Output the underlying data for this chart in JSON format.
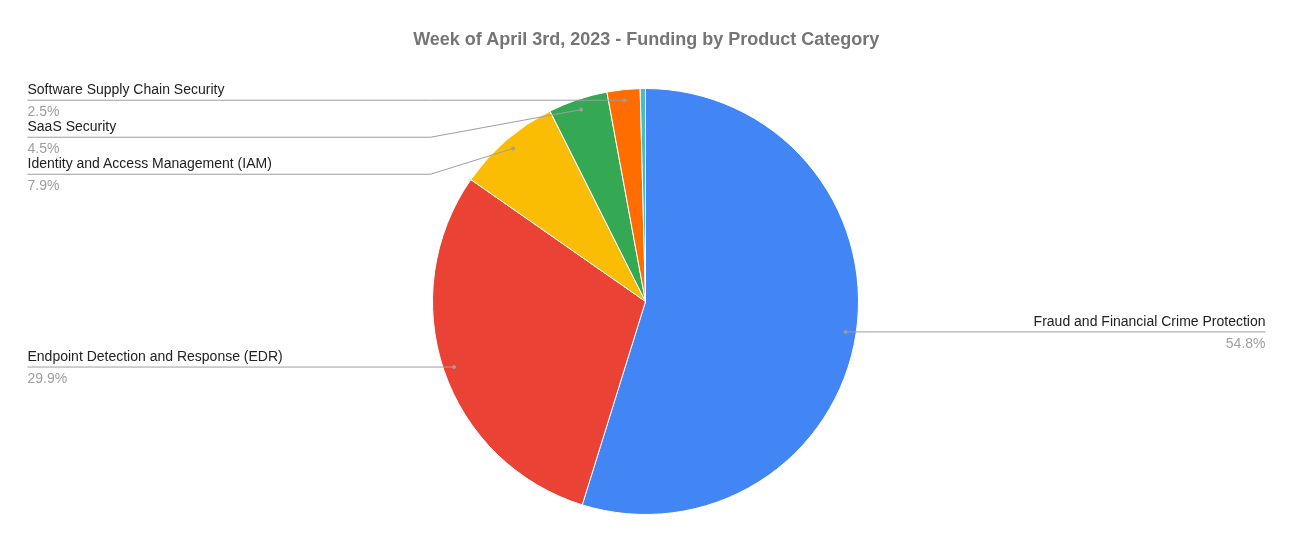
{
  "chart_data": {
    "type": "pie",
    "title": "Week of April 3rd, 2023 - Funding by Product Category",
    "categories": [
      "Fraud and Financial Crime Protection",
      "Endpoint Detection and Response (EDR)",
      "Identity and Access Management (IAM)",
      "SaaS Security",
      "Software Supply Chain Security",
      null
    ],
    "values": [
      54.8,
      29.9,
      7.9,
      4.5,
      2.5,
      0.4
    ],
    "value_labels": [
      "54.8%",
      "29.9%",
      "7.9%",
      "4.5%",
      "2.5%",
      null
    ],
    "colors": [
      "#4285f4",
      "#ea4335",
      "#fbbc04",
      "#34a853",
      "#ff6d01",
      "#46bdc6"
    ]
  }
}
